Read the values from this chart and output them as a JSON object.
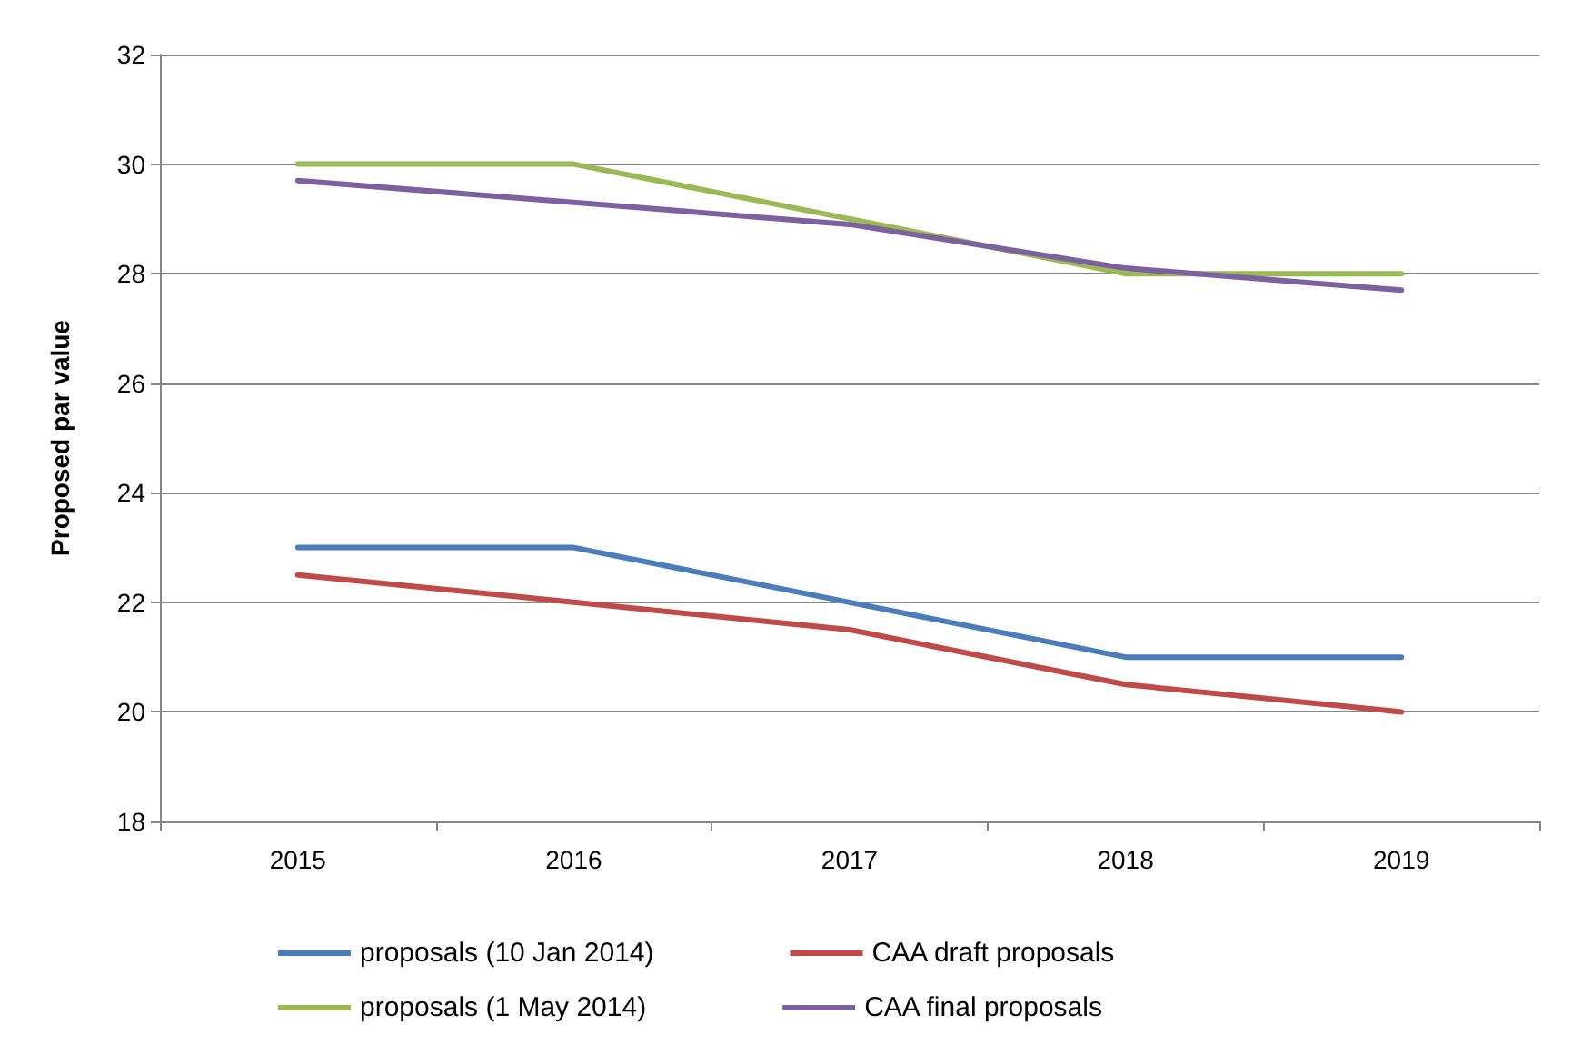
{
  "chart_data": {
    "type": "line",
    "ylabel": "Proposed par value",
    "categories": [
      "2015",
      "2016",
      "2017",
      "2018",
      "2019"
    ],
    "series": [
      {
        "name": "proposals (10 Jan 2014)",
        "color": "#4a7ebb",
        "values": [
          23,
          23,
          22,
          21,
          21
        ]
      },
      {
        "name": "CAA draft proposals",
        "color": "#be4b48",
        "values": [
          22.5,
          22,
          21.5,
          20.5,
          20
        ]
      },
      {
        "name": "proposals (1 May 2014)",
        "color": "#98b954",
        "values": [
          30,
          30,
          29,
          28,
          28
        ]
      },
      {
        "name": "CAA final proposals",
        "color": "#7d60a0",
        "values": [
          29.7,
          29.3,
          28.9,
          28.1,
          27.7
        ]
      }
    ],
    "ylim": [
      18,
      32
    ],
    "yticks": [
      18,
      20,
      22,
      24,
      26,
      28,
      30,
      32
    ],
    "grid": "y",
    "legend": "bottom",
    "marker": "none",
    "line_style": "solid"
  }
}
